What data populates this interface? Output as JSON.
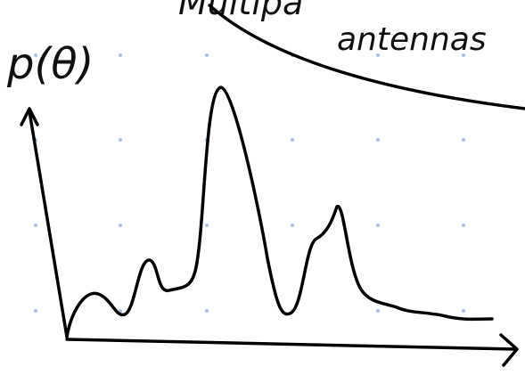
{
  "labels": {
    "axis": "p(θ)",
    "top": "Multipa",
    "note": "antennas"
  }
}
